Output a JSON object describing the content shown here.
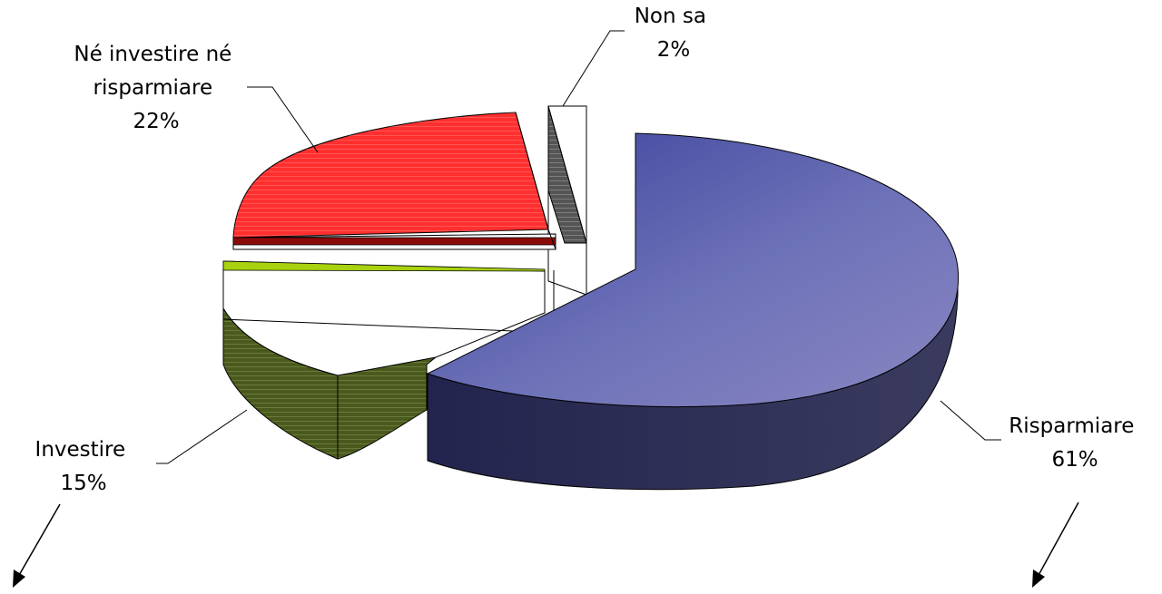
{
  "chart_data": {
    "type": "pie",
    "style": "3d-exploded",
    "slices": [
      {
        "label_lines": [
          "Risparmiare"
        ],
        "pct_text": "61%",
        "value": 61,
        "color": "#5c5fae"
      },
      {
        "label_lines": [
          "Investire"
        ],
        "pct_text": "15%",
        "value": 15,
        "color": "#4a5a1c"
      },
      {
        "label_lines": [
          "Né investire né",
          "risparmiare"
        ],
        "pct_text": "22%",
        "value": 22,
        "color": "#ff3a3a"
      },
      {
        "label_lines": [
          "Non sa"
        ],
        "pct_text": "2%",
        "value": 2,
        "color": "#555555"
      }
    ],
    "legend": "none",
    "title": "",
    "extra_marks": [
      "arrow-below-investire",
      "arrow-below-risparmiare"
    ]
  }
}
